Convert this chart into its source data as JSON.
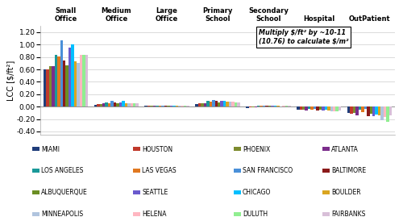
{
  "building_types": [
    "Small\nOffice",
    "Medium\nOffice",
    "Large\nOffice",
    "Primary\nSchool",
    "Secondary\nSchool",
    "Hospital",
    "OutPatient"
  ],
  "building_keys": [
    "Small Office",
    "Medium Office",
    "Large Office",
    "Primary School",
    "Secondary School",
    "Hospital",
    "OutPatient"
  ],
  "cities": [
    "MIAMI",
    "HOUSTON",
    "PHOENIX",
    "ATLANTA",
    "LOS ANGELES",
    "LAS VEGAS",
    "SAN FRANCISCO",
    "BALTIMORE",
    "ALBUQUERQUE",
    "SEATTLE",
    "CHICAGO",
    "BOULDER",
    "MINNEAPOLIS",
    "HELENA",
    "DULUTH",
    "FAIRBANKS"
  ],
  "colors": [
    "#1F3D7A",
    "#C0392B",
    "#7D8B2E",
    "#7B2D8B",
    "#1A9999",
    "#E07820",
    "#4A90D9",
    "#8B1A1A",
    "#6B8E23",
    "#6A5ACD",
    "#00BFFF",
    "#DAA520",
    "#B0C4DE",
    "#FFB6C1",
    "#90EE90",
    "#D8BFD8"
  ],
  "ylabel": "LCC [$/ft²]",
  "annotation": "Multiply $/ft² by ~10-11\n(10.76) to calculate $/m²",
  "ylim": [
    -0.45,
    1.3
  ],
  "yticks": [
    -0.4,
    -0.2,
    0.0,
    0.2,
    0.4,
    0.6,
    0.8,
    1.0,
    1.2
  ],
  "data": {
    "Small Office": [
      0.6,
      0.6,
      0.65,
      0.65,
      0.84,
      0.81,
      1.07,
      0.75,
      0.67,
      0.95,
      1.0,
      0.73,
      0.7,
      0.84,
      0.83,
      0.83
    ],
    "Medium Office": [
      0.03,
      0.04,
      0.04,
      0.05,
      0.07,
      0.06,
      0.09,
      0.07,
      0.05,
      0.07,
      0.09,
      0.06,
      0.06,
      0.06,
      0.05,
      0.05
    ],
    "Large Office": [
      0.01,
      0.01,
      0.01,
      0.01,
      0.02,
      0.01,
      0.02,
      0.01,
      0.01,
      0.01,
      0.02,
      0.01,
      0.01,
      0.01,
      0.01,
      0.01
    ],
    "Primary School": [
      0.04,
      0.05,
      0.05,
      0.06,
      0.09,
      0.08,
      0.11,
      0.09,
      0.07,
      0.09,
      0.1,
      0.08,
      0.08,
      0.08,
      0.07,
      0.07
    ],
    "Secondary School": [
      -0.02,
      -0.01,
      -0.01,
      -0.01,
      0.02,
      0.01,
      0.02,
      0.01,
      0.01,
      0.01,
      0.02,
      0.01,
      0.0,
      0.01,
      0.01,
      0.01
    ],
    "Hospital": [
      -0.05,
      -0.05,
      -0.05,
      -0.06,
      -0.04,
      -0.05,
      -0.03,
      -0.06,
      -0.05,
      -0.06,
      -0.05,
      -0.06,
      -0.07,
      -0.07,
      -0.07,
      -0.06
    ],
    "OutPatient": [
      -0.1,
      -0.12,
      -0.1,
      -0.14,
      -0.05,
      -0.09,
      -0.03,
      -0.15,
      -0.11,
      -0.16,
      -0.13,
      -0.14,
      -0.22,
      -0.17,
      -0.25,
      -0.14
    ]
  }
}
